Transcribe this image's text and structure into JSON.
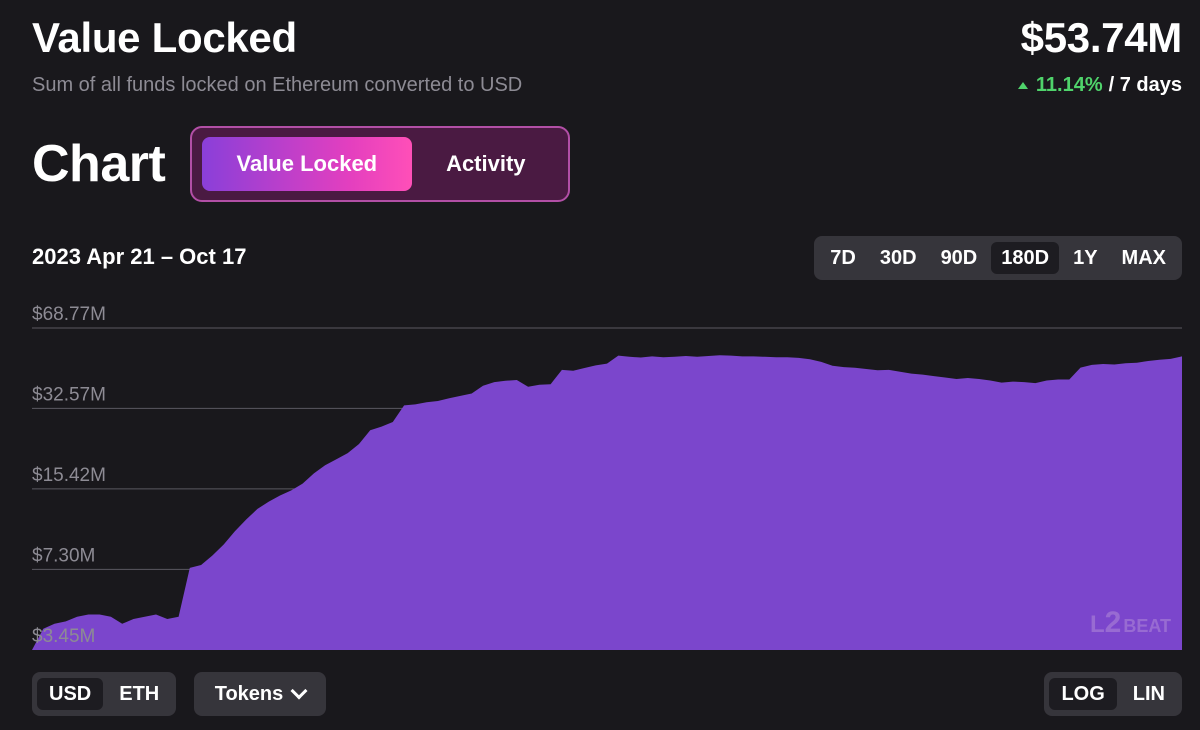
{
  "header": {
    "title": "Value Locked",
    "subtitle": "Sum of all funds locked on Ethereum converted to USD",
    "value": "$53.74M",
    "change_pct": "11.14%",
    "change_period": "/ 7 days"
  },
  "chart_section": {
    "heading": "Chart",
    "toggle": {
      "active": "Value Locked",
      "other": "Activity"
    },
    "date_range": "2023 Apr 21 – Oct 17",
    "ranges": [
      "7D",
      "30D",
      "90D",
      "180D",
      "1Y",
      "MAX"
    ],
    "active_range": "180D"
  },
  "controls": {
    "currency": [
      "USD",
      "ETH"
    ],
    "active_currency": "USD",
    "tokens_label": "Tokens",
    "scale": [
      "LOG",
      "LIN"
    ],
    "active_scale": "LOG"
  },
  "watermark": {
    "l": "L",
    "two": "2",
    "beat": "BEAT"
  },
  "colors": {
    "area": "#7b46cc",
    "positive": "#4fd36b",
    "grid": "#5a5960"
  },
  "chart_data": {
    "type": "area",
    "title": "",
    "xlabel": "",
    "ylabel": "",
    "scale": "log",
    "x_range": [
      "2023-04-21",
      "2023-10-17"
    ],
    "y_ticks": [
      {
        "value": 3.45,
        "label": "$3.45M"
      },
      {
        "value": 7.3,
        "label": "$7.30M"
      },
      {
        "value": 15.42,
        "label": "$15.42M"
      },
      {
        "value": 32.57,
        "label": "$32.57M"
      },
      {
        "value": 68.77,
        "label": "$68.77M"
      }
    ],
    "ylim": [
      3.45,
      68.77
    ],
    "series": [
      {
        "values": [
          3.45,
          4.2,
          4.4,
          4.5,
          4.7,
          4.8,
          4.8,
          4.7,
          4.4,
          4.6,
          4.7,
          4.8,
          4.6,
          4.7,
          7.4,
          7.6,
          8.3,
          9.2,
          10.4,
          11.6,
          12.8,
          13.7,
          14.5,
          15.2,
          16.2,
          17.8,
          19.2,
          20.3,
          21.5,
          23.4,
          26.6,
          27.5,
          28.7,
          33.5,
          33.8,
          34.5,
          34.9,
          35.8,
          36.6,
          37.4,
          40.2,
          41.6,
          42.1,
          42.4,
          39.8,
          40.6,
          40.8,
          46.6,
          46.2,
          47.4,
          48.6,
          49.4,
          53.2,
          52.6,
          52.3,
          52.8,
          52.4,
          52.6,
          53.0,
          52.6,
          53.0,
          53.4,
          53.2,
          52.8,
          52.8,
          52.6,
          52.4,
          52.4,
          52.1,
          51.4,
          50.2,
          48.4,
          47.8,
          47.5,
          47.0,
          46.4,
          46.6,
          45.8,
          45.0,
          44.6,
          44.0,
          43.4,
          42.8,
          43.2,
          42.8,
          42.2,
          41.4,
          41.8,
          41.6,
          41.2,
          42.2,
          42.6,
          42.6,
          47.6,
          48.8,
          49.2,
          49.0,
          49.6,
          49.8,
          50.6,
          51.2,
          51.6,
          52.8
        ]
      }
    ]
  }
}
